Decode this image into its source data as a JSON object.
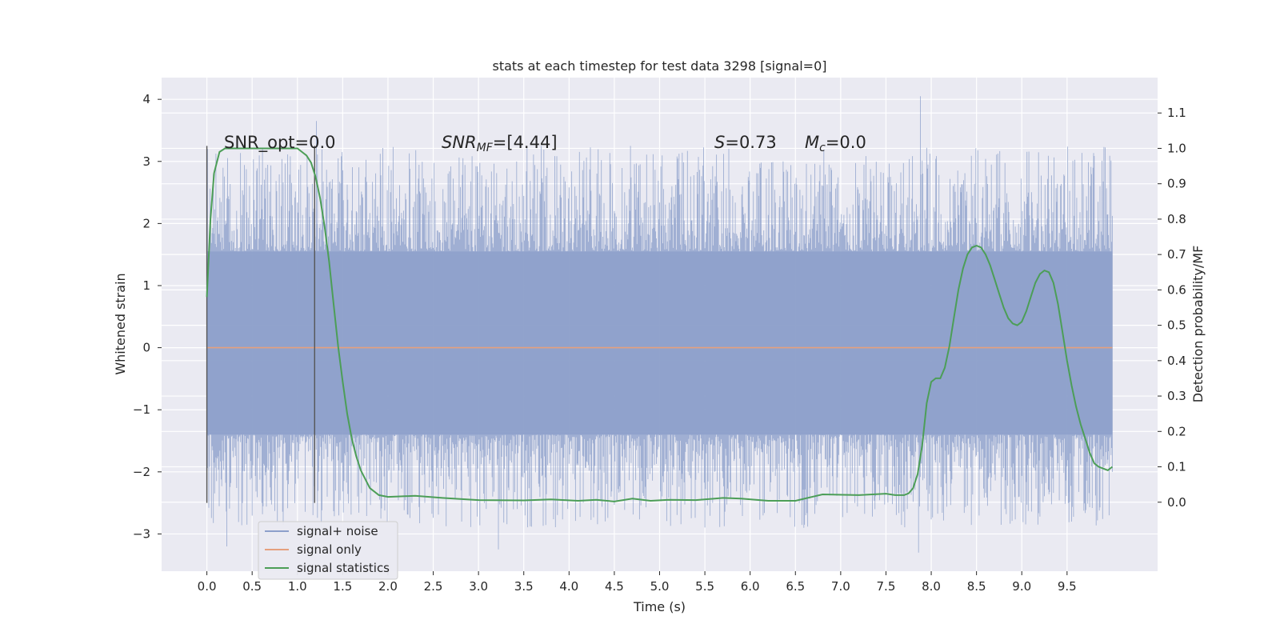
{
  "chart_data": {
    "type": "line",
    "title": "stats at each timestep for test data 3298 [signal=0]",
    "xlabel": "Time (s)",
    "ylabel_left": "Whitened strain",
    "ylabel_right": "Detection probability/MF",
    "xlim": [
      -0.5,
      10.5
    ],
    "ylim_left": [
      -3.6,
      4.35
    ],
    "ylim_right": [
      -0.195,
      1.2
    ],
    "x_ticks": [
      0.0,
      0.5,
      1.0,
      1.5,
      2.0,
      2.5,
      3.0,
      3.5,
      4.0,
      4.5,
      5.0,
      5.5,
      6.0,
      6.5,
      7.0,
      7.5,
      8.0,
      8.5,
      9.0,
      9.5
    ],
    "x_tick_labels": [
      "0.0",
      "0.5",
      "1.0",
      "1.5",
      "2.0",
      "2.5",
      "3.0",
      "3.5",
      "4.0",
      "4.5",
      "5.0",
      "5.5",
      "6.0",
      "6.5",
      "7.0",
      "7.5",
      "8.0",
      "8.5",
      "9.0",
      "9.5"
    ],
    "y_left_ticks": [
      -3,
      -2,
      -1,
      0,
      1,
      2,
      3,
      4
    ],
    "y_left_tick_labels": [
      "−3",
      "−2",
      "−1",
      "0",
      "1",
      "2",
      "3",
      "4"
    ],
    "y_right_ticks": [
      0.0,
      0.1,
      0.2,
      0.3,
      0.4,
      0.5,
      0.6,
      0.7,
      0.8,
      0.9,
      1.0,
      1.1
    ],
    "y_right_tick_labels": [
      "0.0",
      "0.1",
      "0.2",
      "0.3",
      "0.4",
      "0.5",
      "0.6",
      "0.7",
      "0.8",
      "0.9",
      "1.0",
      "1.1"
    ],
    "grid": true,
    "legend_position": "lower-left",
    "legend": [
      "signal+ noise",
      "signal only",
      "signal statistics"
    ],
    "colors": {
      "signal_noise": "#8da0cb",
      "signal_only": "#e5a07e",
      "signal_statistics": "#4c9e57",
      "vlines": "#555555",
      "plot_bg": "#e8e8f0",
      "grid": "#ffffff"
    },
    "annotations": {
      "snr_opt": "SNR_opt=0.0",
      "snr_mf_sym": "SNR",
      "snr_mf_sub": "MF",
      "snr_mf_val": "=[4.44]",
      "s_sym": "S",
      "s_val": "=0.73",
      "mc_sym": "M",
      "mc_sub": "c",
      "mc_val": "=0.0"
    },
    "vertical_lines": [
      {
        "x": 0.0,
        "y_range": [
          -2.5,
          3.25
        ]
      },
      {
        "x": 1.19,
        "y_range": [
          -2.5,
          3.25
        ]
      }
    ],
    "series": [
      {
        "name": "signal+ noise",
        "kind": "noise",
        "x_range": [
          0.0,
          10.0
        ],
        "core_range": [
          -1.4,
          1.55
        ],
        "max": 4.05,
        "min": -3.3
      },
      {
        "name": "signal only",
        "x": [
          0.0,
          10.0
        ],
        "y": [
          0.0,
          0.0
        ]
      },
      {
        "name": "signal statistics",
        "axis": "right",
        "x": [
          0.0,
          0.04,
          0.08,
          0.14,
          0.2,
          0.3,
          0.4,
          0.5,
          0.6,
          0.7,
          0.8,
          0.9,
          1.0,
          1.05,
          1.1,
          1.15,
          1.2,
          1.25,
          1.3,
          1.35,
          1.4,
          1.45,
          1.5,
          1.55,
          1.6,
          1.65,
          1.7,
          1.8,
          1.9,
          2.0,
          2.3,
          2.6,
          3.0,
          3.5,
          3.8,
          4.1,
          4.3,
          4.5,
          4.7,
          4.9,
          5.1,
          5.4,
          5.7,
          5.9,
          6.2,
          6.5,
          6.8,
          7.2,
          7.5,
          7.6,
          7.7,
          7.75,
          7.8,
          7.85,
          7.9,
          7.95,
          8.0,
          8.05,
          8.1,
          8.15,
          8.2,
          8.25,
          8.3,
          8.35,
          8.4,
          8.45,
          8.5,
          8.55,
          8.6,
          8.65,
          8.7,
          8.75,
          8.8,
          8.85,
          8.9,
          8.95,
          9.0,
          9.05,
          9.1,
          9.15,
          9.2,
          9.25,
          9.3,
          9.35,
          9.4,
          9.45,
          9.5,
          9.55,
          9.6,
          9.65,
          9.7,
          9.75,
          9.8,
          9.85,
          9.9,
          9.95,
          10.0
        ],
        "y": [
          0.58,
          0.8,
          0.93,
          0.99,
          1.0,
          1.0,
          1.0,
          1.0,
          1.0,
          1.0,
          1.0,
          1.0,
          1.0,
          0.99,
          0.98,
          0.96,
          0.92,
          0.86,
          0.78,
          0.68,
          0.56,
          0.44,
          0.34,
          0.25,
          0.18,
          0.13,
          0.09,
          0.04,
          0.02,
          0.015,
          0.018,
          0.012,
          0.006,
          0.005,
          0.008,
          0.004,
          0.007,
          0.002,
          0.01,
          0.004,
          0.007,
          0.006,
          0.012,
          0.01,
          0.004,
          0.004,
          0.022,
          0.02,
          0.024,
          0.02,
          0.02,
          0.025,
          0.04,
          0.08,
          0.16,
          0.28,
          0.34,
          0.35,
          0.35,
          0.38,
          0.44,
          0.52,
          0.6,
          0.66,
          0.7,
          0.72,
          0.725,
          0.72,
          0.7,
          0.67,
          0.63,
          0.59,
          0.55,
          0.52,
          0.505,
          0.5,
          0.51,
          0.54,
          0.58,
          0.62,
          0.645,
          0.655,
          0.65,
          0.62,
          0.56,
          0.48,
          0.4,
          0.33,
          0.27,
          0.22,
          0.18,
          0.14,
          0.11,
          0.1,
          0.095,
          0.09,
          0.1
        ]
      }
    ]
  }
}
